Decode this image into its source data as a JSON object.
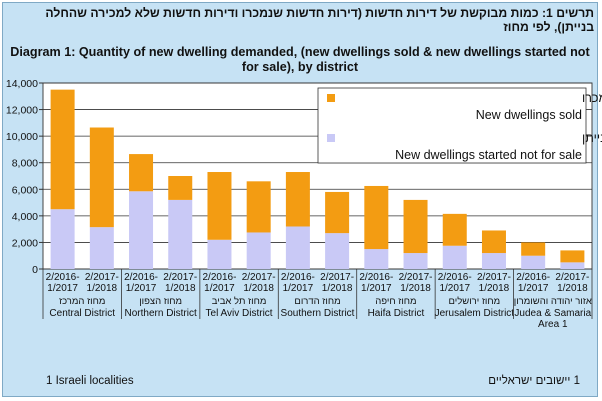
{
  "title_he": "תרשים 1: כמות מבוקשת של דירות חדשות (דירות חדשות שנמכרו ודירות חדשות שלא למכירה שהחלה בנייתן), לפי מחוז",
  "title_en_line1": "Diagram 1:  Quantity of new dwelling demanded, (new dwellings sold & new dwellings started not",
  "title_en_line2": "for sale), by district",
  "footer_en": "1 Israeli localities",
  "footer_he": "1 יישובים ישראליים",
  "colors": {
    "sold": "#f39c12",
    "not_for_sale": "#c9c9f6",
    "plot_bg": "#ffffff"
  },
  "chart_data": {
    "type": "bar",
    "stacked": true,
    "ylim": [
      0,
      14000
    ],
    "yticks": [
      "0",
      "2,000",
      "4,000",
      "6,000",
      "8,000",
      "10,000",
      "12,000",
      "14,000"
    ],
    "grid": true,
    "legend_position": "top-right",
    "periods": [
      "2/2016-1/2017",
      "2/2017-1/2018"
    ],
    "period_labels": [
      [
        "2/2016-",
        "1/2017"
      ],
      [
        "2/2017-",
        "1/2018"
      ]
    ],
    "districts": [
      {
        "he": "מחוז המרכז",
        "en": "Central District"
      },
      {
        "he": "מחוז הצפון",
        "en": "Northern District"
      },
      {
        "he": "מחוז תל אביב",
        "en": "Tel Aviv District"
      },
      {
        "he": "מחוז הדרום",
        "en": "Southern District"
      },
      {
        "he": "מחוז חיפה",
        "en": "Haifa District"
      },
      {
        "he": "מחוז ירושלים",
        "en": "Jerusalem District"
      },
      {
        "he": "אזור יהודה והשומרון",
        "en": "Judea & Samaria",
        "en2": "Area 1"
      }
    ],
    "series": [
      {
        "name_he": "דירות חדשות שלא למכירה שהחלה בנייתן",
        "name_en": "New dwellings started not for sale",
        "values": [
          4500,
          3150,
          5850,
          5200,
          2200,
          2750,
          3200,
          2700,
          1500,
          1200,
          1750,
          1200,
          1000,
          500
        ]
      },
      {
        "name_he": "דירות חדשות שנמכרו",
        "name_en": "New dwellings sold",
        "values": [
          9000,
          7500,
          2800,
          1800,
          5100,
          3850,
          4100,
          3100,
          4750,
          4000,
          2400,
          1700,
          1000,
          900
        ]
      }
    ]
  }
}
